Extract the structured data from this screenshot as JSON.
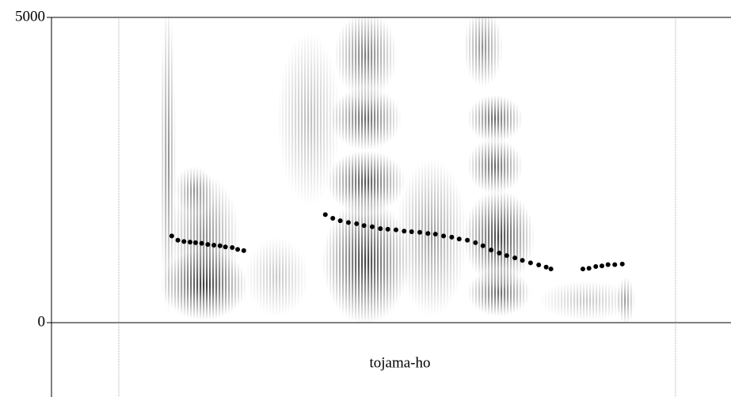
{
  "chart_data": {
    "type": "scatter",
    "tier_label": "tojama-ho",
    "ylim": [
      0,
      5000
    ],
    "yticks": [
      0,
      5000
    ],
    "xlim": [
      0,
      1
    ],
    "series": [
      {
        "color": "#000000",
        "x": [
          0.177,
          0.186,
          0.195,
          0.204,
          0.212,
          0.221,
          0.23,
          0.239,
          0.248,
          0.256,
          0.266,
          0.274,
          0.283,
          0.403,
          0.414,
          0.425,
          0.437,
          0.449,
          0.46,
          0.472,
          0.484,
          0.495,
          0.507,
          0.519,
          0.53,
          0.542,
          0.554,
          0.565,
          0.577,
          0.589,
          0.6,
          0.612,
          0.624,
          0.635,
          0.647,
          0.659,
          0.67,
          0.682,
          0.693,
          0.705,
          0.717,
          0.728,
          0.735,
          0.782,
          0.791,
          0.801,
          0.81,
          0.819,
          0.829,
          0.84
        ],
        "values": [
          1420,
          1350,
          1330,
          1320,
          1310,
          1300,
          1280,
          1270,
          1260,
          1240,
          1230,
          1200,
          1180,
          1770,
          1710,
          1670,
          1640,
          1620,
          1590,
          1570,
          1540,
          1530,
          1520,
          1500,
          1490,
          1480,
          1460,
          1450,
          1420,
          1400,
          1370,
          1350,
          1310,
          1260,
          1190,
          1140,
          1100,
          1060,
          1020,
          980,
          945,
          910,
          880,
          880,
          890,
          920,
          930,
          950,
          950,
          960
        ]
      }
    ]
  }
}
